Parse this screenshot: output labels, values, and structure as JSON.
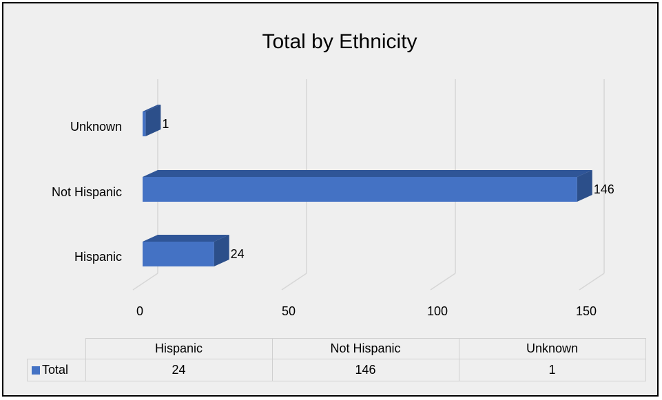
{
  "chart_data": {
    "type": "bar",
    "orientation": "horizontal",
    "title": "Total by Ethnicity",
    "categories": [
      "Hispanic",
      "Not Hispanic",
      "Unknown"
    ],
    "series": [
      {
        "name": "Total",
        "values": [
          24,
          146,
          1
        ]
      }
    ],
    "x_ticks": [
      0,
      50,
      100,
      150
    ],
    "xlim": [
      0,
      150
    ],
    "data_labels": [
      "24",
      "146",
      "1"
    ],
    "grid": true,
    "legend": "data-table",
    "colors": {
      "bar": "#4472c4",
      "bar_top": "#2f5597",
      "bar_side": "#2c4f8a",
      "background": "#efefef"
    }
  },
  "data_table": {
    "headers": [
      "Hispanic",
      "Not Hispanic",
      "Unknown"
    ],
    "row_label": "Total",
    "values": [
      "24",
      "146",
      "1"
    ]
  }
}
